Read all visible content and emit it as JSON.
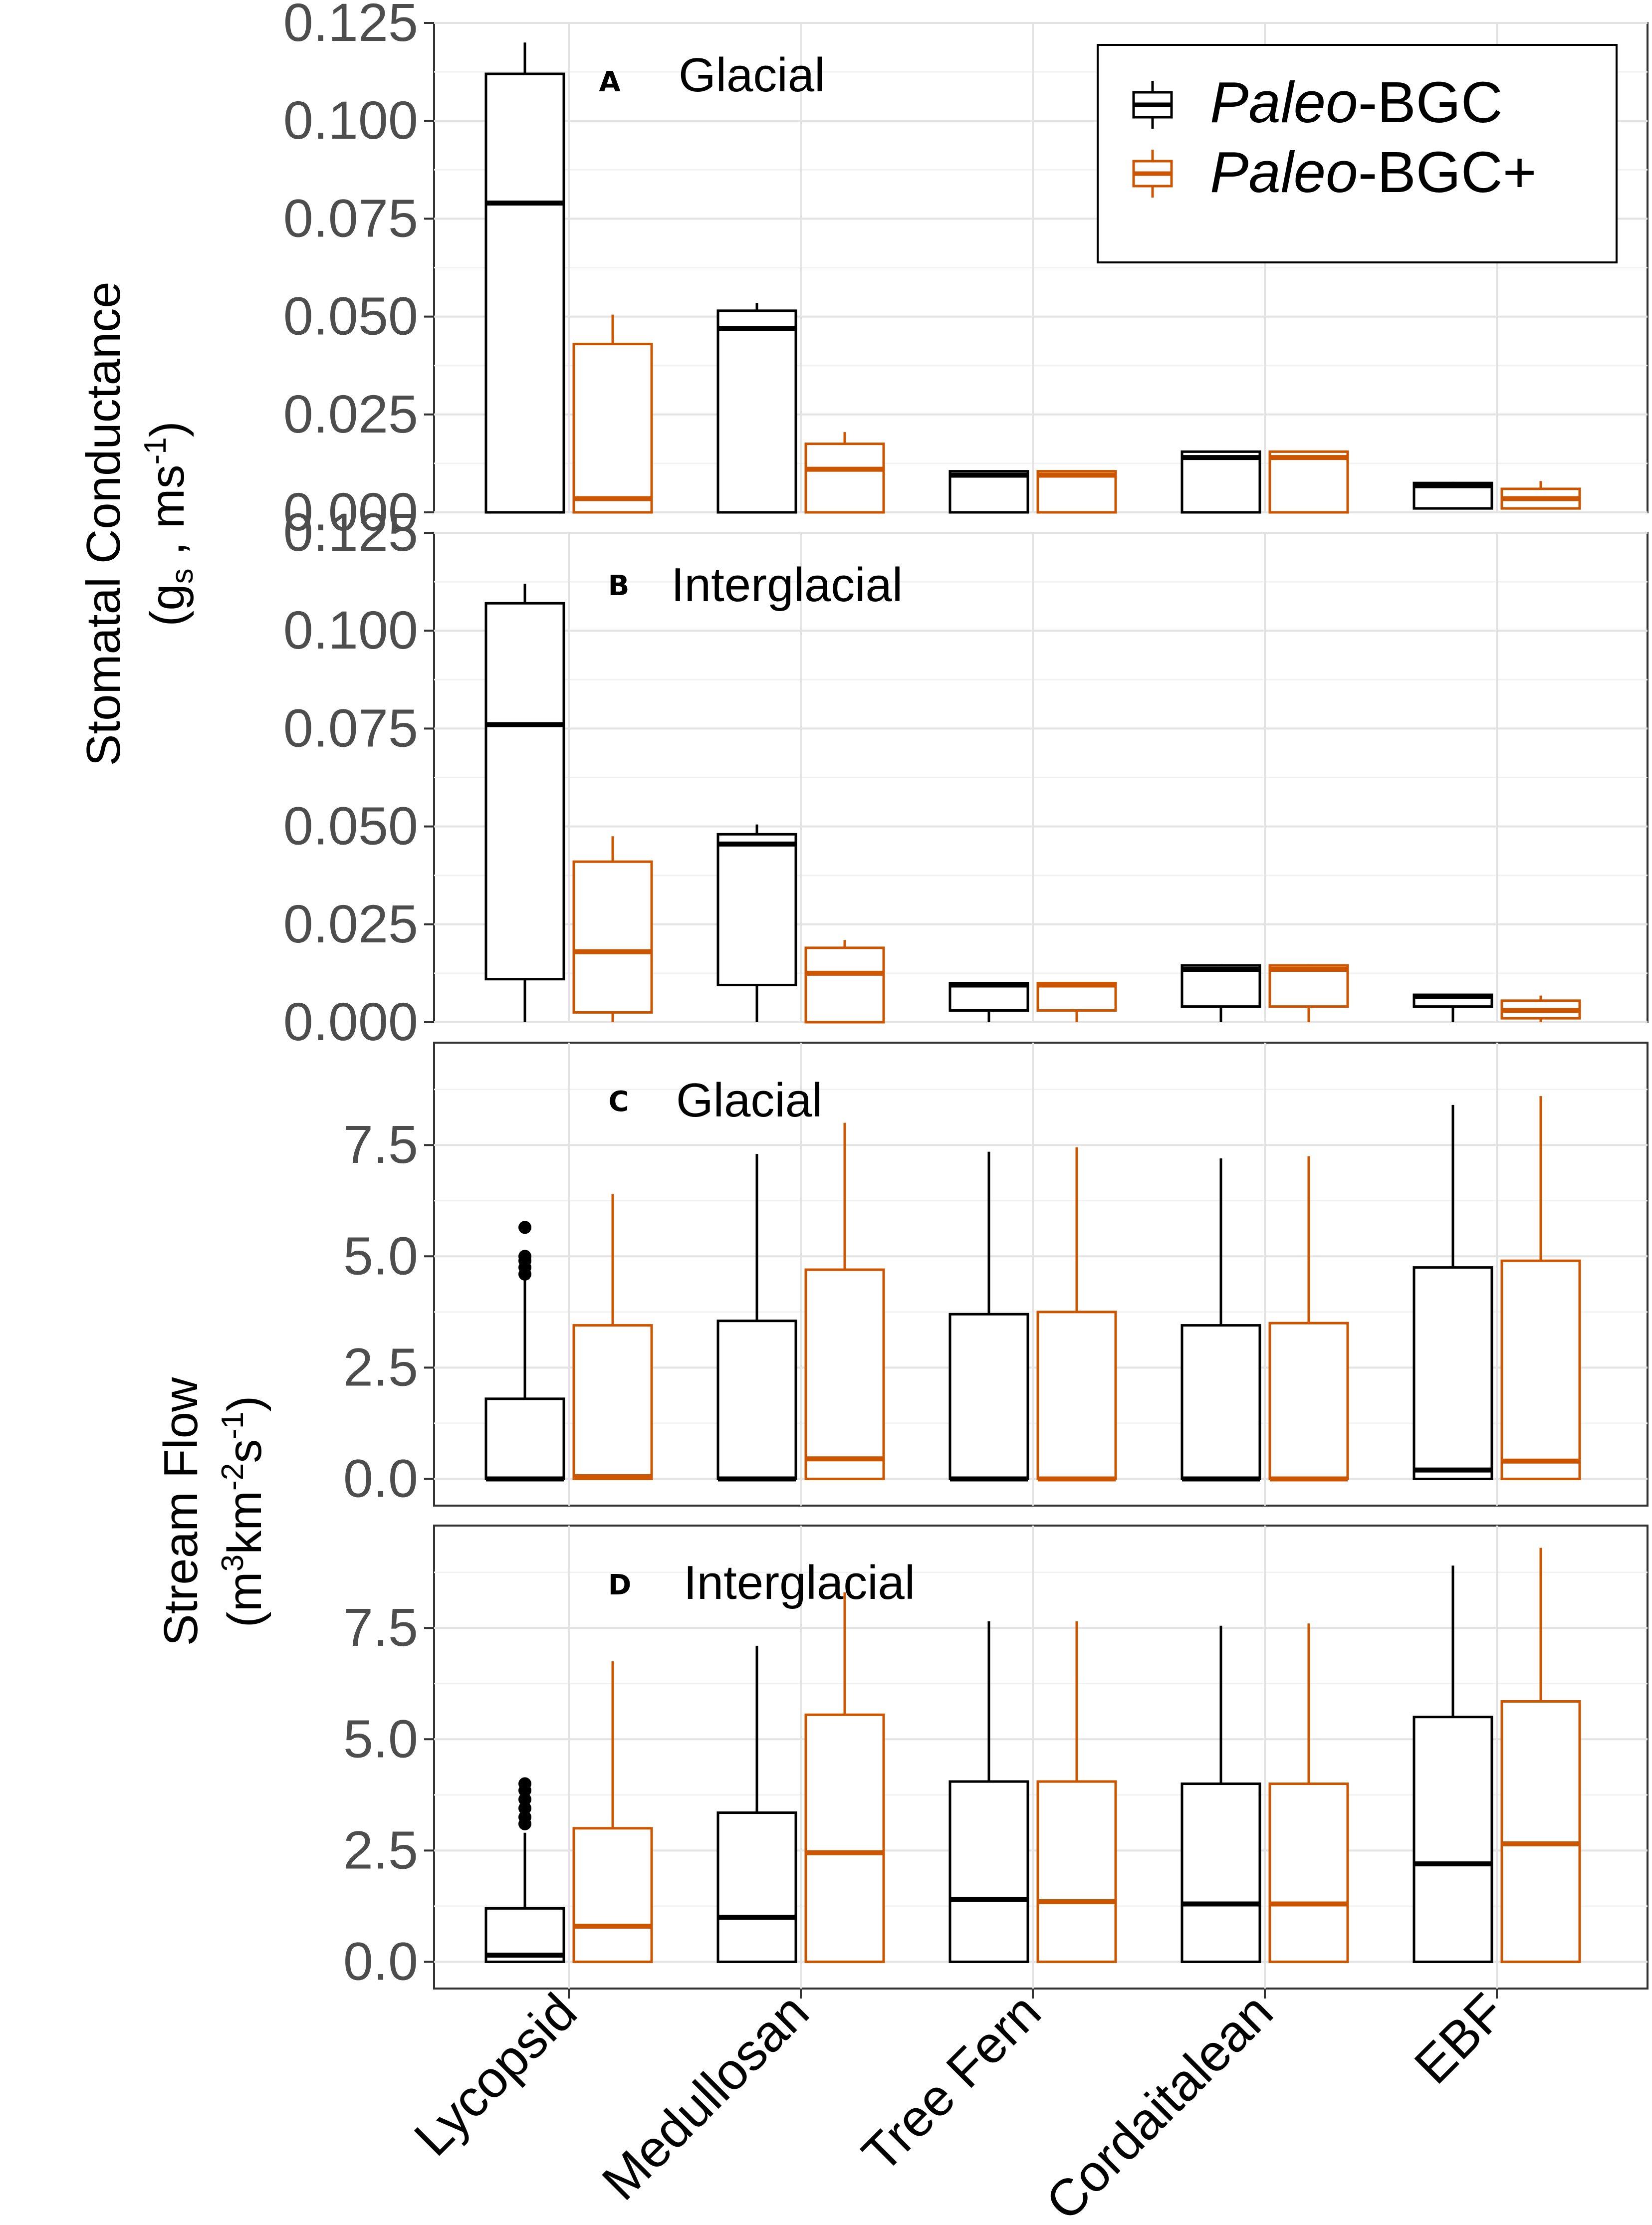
{
  "legend": {
    "items": [
      {
        "prefix": "Paleo",
        "suffix": "-BGC",
        "color": "#000000"
      },
      {
        "prefix": "Paleo",
        "suffix": "-BGC+",
        "color": "#cc5500"
      }
    ]
  },
  "y_labels": {
    "stomatal_line1": "Stomatal Conductance",
    "stomatal_line2_open": "(g",
    "stomatal_line2_sub": "s",
    "stomatal_line2_mid": " , ms",
    "stomatal_line2_sup": "-1",
    "stomatal_line2_close": ")",
    "stream_line1": "Stream Flow",
    "stream_line2_a": "(m",
    "stream_line2_sup1": "3",
    "stream_line2_b": "km",
    "stream_line2_sup2": "-2",
    "stream_line2_c": "s",
    "stream_line2_sup3": "-1",
    "stream_line2_d": ")"
  },
  "chart_data": [
    {
      "type": "boxplot",
      "panel": "A",
      "title": "Glacial",
      "categories": [
        "Lycopsid",
        "Medullosan",
        "Tree Fern",
        "Cordaitalean",
        "EBF"
      ],
      "ylim": [
        0,
        0.125
      ],
      "yticks": [
        "0.000",
        "0.025",
        "0.050",
        "0.075",
        "0.100",
        "0.125"
      ],
      "ytick_values": [
        0,
        0.025,
        0.05,
        0.075,
        0.1,
        0.125
      ],
      "series": [
        {
          "name": "Paleo-BGC",
          "boxes": [
            {
              "min": 0,
              "q1": 0,
              "median": 0.079,
              "q3": 0.112,
              "max": 0.12,
              "outliers": []
            },
            {
              "min": 0,
              "q1": 0,
              "median": 0.047,
              "q3": 0.0515,
              "max": 0.0535,
              "outliers": []
            },
            {
              "min": 0,
              "q1": 0,
              "median": 0.0095,
              "q3": 0.0105,
              "max": 0.0105,
              "outliers": []
            },
            {
              "min": 0,
              "q1": 0,
              "median": 0.014,
              "q3": 0.0155,
              "max": 0.0155,
              "outliers": []
            },
            {
              "min": 0.001,
              "q1": 0.001,
              "median": 0.0068,
              "q3": 0.0075,
              "max": 0.0078,
              "outliers": []
            }
          ]
        },
        {
          "name": "Paleo-BGC+",
          "boxes": [
            {
              "min": 0,
              "q1": 0,
              "median": 0.0035,
              "q3": 0.043,
              "max": 0.0505,
              "outliers": []
            },
            {
              "min": 0,
              "q1": 0,
              "median": 0.011,
              "q3": 0.0175,
              "max": 0.0205,
              "outliers": []
            },
            {
              "min": 0,
              "q1": 0,
              "median": 0.0095,
              "q3": 0.0105,
              "max": 0.0105,
              "outliers": []
            },
            {
              "min": 0,
              "q1": 0,
              "median": 0.014,
              "q3": 0.0155,
              "max": 0.0155,
              "outliers": []
            },
            {
              "min": 0.001,
              "q1": 0.001,
              "median": 0.0035,
              "q3": 0.006,
              "max": 0.008,
              "outliers": []
            }
          ]
        }
      ]
    },
    {
      "type": "boxplot",
      "panel": "B",
      "title": "Interglacial",
      "categories": [
        "Lycopsid",
        "Medullosan",
        "Tree Fern",
        "Cordaitalean",
        "EBF"
      ],
      "ylim": [
        0,
        0.125
      ],
      "yticks": [
        "0.000",
        "0.025",
        "0.050",
        "0.075",
        "0.100",
        "0.125"
      ],
      "ytick_values": [
        0,
        0.025,
        0.05,
        0.075,
        0.1,
        0.125
      ],
      "series": [
        {
          "name": "Paleo-BGC",
          "boxes": [
            {
              "min": 0,
              "q1": 0.011,
              "median": 0.076,
              "q3": 0.107,
              "max": 0.112,
              "outliers": []
            },
            {
              "min": 0,
              "q1": 0.0095,
              "median": 0.0455,
              "q3": 0.048,
              "max": 0.0505,
              "outliers": []
            },
            {
              "min": 0,
              "q1": 0.003,
              "median": 0.0095,
              "q3": 0.01,
              "max": 0.01,
              "outliers": []
            },
            {
              "min": 0,
              "q1": 0.004,
              "median": 0.0135,
              "q3": 0.0145,
              "max": 0.0148,
              "outliers": []
            },
            {
              "min": 0,
              "q1": 0.004,
              "median": 0.0065,
              "q3": 0.007,
              "max": 0.0072,
              "outliers": []
            }
          ]
        },
        {
          "name": "Paleo-BGC+",
          "boxes": [
            {
              "min": 0,
              "q1": 0.0025,
              "median": 0.018,
              "q3": 0.041,
              "max": 0.0475,
              "outliers": []
            },
            {
              "min": 0,
              "q1": 0,
              "median": 0.0125,
              "q3": 0.019,
              "max": 0.021,
              "outliers": []
            },
            {
              "min": 0,
              "q1": 0.003,
              "median": 0.0095,
              "q3": 0.01,
              "max": 0.01,
              "outliers": []
            },
            {
              "min": 0,
              "q1": 0.004,
              "median": 0.0135,
              "q3": 0.0145,
              "max": 0.0148,
              "outliers": []
            },
            {
              "min": 0,
              "q1": 0.001,
              "median": 0.003,
              "q3": 0.0055,
              "max": 0.0068,
              "outliers": []
            }
          ]
        }
      ]
    },
    {
      "type": "boxplot",
      "panel": "C",
      "title": "Glacial",
      "categories": [
        "Lycopsid",
        "Medullosan",
        "Tree Fern",
        "Cordaitalean",
        "EBF"
      ],
      "ylim": [
        -0.6,
        9.8
      ],
      "yticks": [
        "0.0",
        "2.5",
        "5.0",
        "7.5"
      ],
      "ytick_values": [
        0,
        2.5,
        5,
        7.5
      ],
      "series": [
        {
          "name": "Paleo-BGC",
          "boxes": [
            {
              "min": 0,
              "q1": 0,
              "median": 0,
              "q3": 1.8,
              "max": 4.5,
              "outliers": [
                4.6,
                4.75,
                4.9,
                5.0,
                5.65
              ]
            },
            {
              "min": 0,
              "q1": 0,
              "median": 0,
              "q3": 3.55,
              "max": 7.3,
              "outliers": []
            },
            {
              "min": 0,
              "q1": 0,
              "median": 0,
              "q3": 3.7,
              "max": 7.35,
              "outliers": []
            },
            {
              "min": 0,
              "q1": 0,
              "median": 0,
              "q3": 3.45,
              "max": 7.2,
              "outliers": []
            },
            {
              "min": 0,
              "q1": 0,
              "median": 0.2,
              "q3": 4.75,
              "max": 8.4,
              "outliers": []
            }
          ]
        },
        {
          "name": "Paleo-BGC+",
          "boxes": [
            {
              "min": 0,
              "q1": 0,
              "median": 0.05,
              "q3": 3.45,
              "max": 6.4,
              "outliers": []
            },
            {
              "min": 0,
              "q1": 0,
              "median": 0.45,
              "q3": 4.7,
              "max": 8.0,
              "outliers": []
            },
            {
              "min": 0,
              "q1": 0,
              "median": 0,
              "q3": 3.75,
              "max": 7.45,
              "outliers": []
            },
            {
              "min": 0,
              "q1": 0,
              "median": 0,
              "q3": 3.5,
              "max": 7.25,
              "outliers": []
            },
            {
              "min": 0,
              "q1": 0,
              "median": 0.4,
              "q3": 4.9,
              "max": 8.6,
              "outliers": []
            }
          ]
        }
      ]
    },
    {
      "type": "boxplot",
      "panel": "D",
      "title": "Interglacial",
      "categories": [
        "Lycopsid",
        "Medullosan",
        "Tree Fern",
        "Cordaitalean",
        "EBF"
      ],
      "ylim": [
        -0.6,
        9.8
      ],
      "yticks": [
        "0.0",
        "2.5",
        "5.0",
        "7.5"
      ],
      "ytick_values": [
        0,
        2.5,
        5,
        7.5
      ],
      "series": [
        {
          "name": "Paleo-BGC",
          "boxes": [
            {
              "min": 0,
              "q1": 0,
              "median": 0.15,
              "q3": 1.2,
              "max": 2.9,
              "outliers": [
                3.1,
                3.25,
                3.45,
                3.65,
                3.85,
                4.0
              ]
            },
            {
              "min": 0,
              "q1": 0,
              "median": 1.0,
              "q3": 3.35,
              "max": 7.1,
              "outliers": []
            },
            {
              "min": 0,
              "q1": 0,
              "median": 1.4,
              "q3": 4.05,
              "max": 7.65,
              "outliers": []
            },
            {
              "min": 0,
              "q1": 0,
              "median": 1.3,
              "q3": 4.0,
              "max": 7.55,
              "outliers": []
            },
            {
              "min": 0,
              "q1": 0,
              "median": 2.2,
              "q3": 5.5,
              "max": 8.9,
              "outliers": []
            }
          ]
        },
        {
          "name": "Paleo-BGC+",
          "boxes": [
            {
              "min": 0,
              "q1": 0,
              "median": 0.8,
              "q3": 3.0,
              "max": 6.75,
              "outliers": []
            },
            {
              "min": 0,
              "q1": 0,
              "median": 2.45,
              "q3": 5.55,
              "max": 8.3,
              "outliers": []
            },
            {
              "min": 0,
              "q1": 0,
              "median": 1.35,
              "q3": 4.05,
              "max": 7.65,
              "outliers": []
            },
            {
              "min": 0,
              "q1": 0,
              "median": 1.3,
              "q3": 4.0,
              "max": 7.6,
              "outliers": []
            },
            {
              "min": 0,
              "q1": 0,
              "median": 2.65,
              "q3": 5.85,
              "max": 9.3,
              "outliers": []
            }
          ]
        }
      ]
    }
  ]
}
